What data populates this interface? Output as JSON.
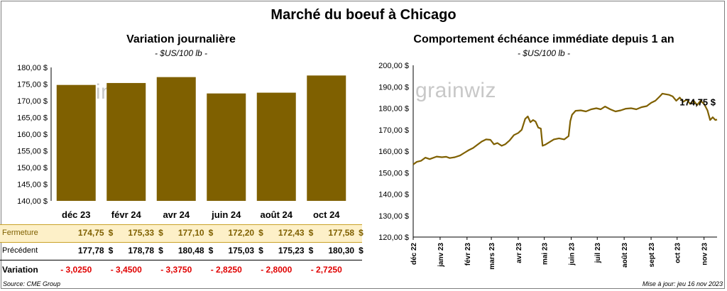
{
  "title": "Marché du boeuf à Chicago",
  "left": {
    "title": "Variation journalière",
    "subtitle": "- $US/100 lb -",
    "watermark": "grainwiz"
  },
  "right": {
    "title": "Comportement échéance immédiate depuis 1 an",
    "subtitle": "- $US/100 lb -",
    "watermark": "grainwiz",
    "last_label": "174,75 $"
  },
  "table": {
    "row_labels": [
      "Fermeture",
      "Précédent",
      "Variation"
    ],
    "currency": "$",
    "fermeture": [
      "174,75",
      "175,33",
      "177,10",
      "172,20",
      "172,43",
      "177,58"
    ],
    "precedent": [
      "177,78",
      "178,78",
      "180,48",
      "175,03",
      "175,23",
      "180,30"
    ],
    "variation": [
      "- 3,0250",
      "- 3,4500",
      "- 3,3750",
      "- 2,8250",
      "- 2,8000",
      "- 2,7250"
    ]
  },
  "footer": {
    "source": "Source: CME Group",
    "updated": "Mise à jour: jeu 16 nov 2023"
  },
  "colors": {
    "bar": "#7f6000",
    "line": "#7f6000",
    "negative": "#e00000",
    "close_bg": "#fdf0c8"
  },
  "chart_data": [
    {
      "type": "bar",
      "categories": [
        "déc 23",
        "févr 24",
        "avr 24",
        "juin 24",
        "août 24",
        "oct 24"
      ],
      "values": [
        174.75,
        175.33,
        177.1,
        172.2,
        172.43,
        177.58
      ],
      "ylim": [
        140,
        180
      ],
      "yticks": [
        140,
        145,
        150,
        155,
        160,
        165,
        170,
        175,
        180
      ],
      "ytick_labels": [
        "140,00 $",
        "145,00 $",
        "150,00 $",
        "155,00 $",
        "160,00 $",
        "165,00 $",
        "170,00 $",
        "175,00 $",
        "180,00 $"
      ],
      "grid": false
    },
    {
      "type": "line",
      "xlim": [
        "2022-12-01",
        "2023-11-16"
      ],
      "ylim": [
        120,
        200
      ],
      "yticks": [
        120,
        130,
        140,
        150,
        160,
        170,
        180,
        190,
        200
      ],
      "ytick_labels": [
        "120,00 $",
        "130,00 $",
        "140,00 $",
        "150,00 $",
        "160,00 $",
        "170,00 $",
        "180,00 $",
        "190,00 $",
        "200,00 $"
      ],
      "xticks": [
        "2022-12-01",
        "2023-01-01",
        "2023-02-01",
        "2023-03-01",
        "2023-04-01",
        "2023-05-01",
        "2023-06-01",
        "2023-07-01",
        "2023-08-01",
        "2023-09-01",
        "2023-10-01",
        "2023-11-01"
      ],
      "xtick_labels": [
        "déc 22",
        "janv 23",
        "févr 23",
        "mars 23",
        "avr 23",
        "mai 23",
        "juin 23",
        "juil 23",
        "août 23",
        "sept 23",
        "oct 23",
        "nov 23"
      ],
      "grid": false,
      "series": [
        {
          "x": [
            "2022-12-01",
            "2022-12-05",
            "2022-12-10",
            "2022-12-15",
            "2022-12-20",
            "2022-12-28",
            "2023-01-03",
            "2023-01-08",
            "2023-01-12",
            "2023-01-18",
            "2023-01-24",
            "2023-01-30",
            "2023-02-03",
            "2023-02-08",
            "2023-02-13",
            "2023-02-18",
            "2023-02-23",
            "2023-02-28",
            "2023-03-04",
            "2023-03-08",
            "2023-03-13",
            "2023-03-17",
            "2023-03-22",
            "2023-03-27",
            "2023-04-01",
            "2023-04-05",
            "2023-04-09",
            "2023-04-12",
            "2023-04-15",
            "2023-04-18",
            "2023-04-21",
            "2023-04-24",
            "2023-04-27",
            "2023-04-29",
            "2023-05-02",
            "2023-05-06",
            "2023-05-12",
            "2023-05-18",
            "2023-05-24",
            "2023-05-29",
            "2023-05-31",
            "2023-06-02",
            "2023-06-06",
            "2023-06-12",
            "2023-06-18",
            "2023-06-24",
            "2023-06-30",
            "2023-07-05",
            "2023-07-10",
            "2023-07-16",
            "2023-07-22",
            "2023-07-28",
            "2023-08-03",
            "2023-08-09",
            "2023-08-15",
            "2023-08-21",
            "2023-08-27",
            "2023-09-01",
            "2023-09-06",
            "2023-09-11",
            "2023-09-14",
            "2023-09-18",
            "2023-09-22",
            "2023-09-26",
            "2023-09-30",
            "2023-10-04",
            "2023-10-08",
            "2023-10-12",
            "2023-10-16",
            "2023-10-20",
            "2023-10-24",
            "2023-10-28",
            "2023-11-01",
            "2023-11-05",
            "2023-11-08",
            "2023-11-11",
            "2023-11-14",
            "2023-11-16"
          ],
          "y": [
            153.8,
            155.0,
            155.5,
            157.0,
            156.3,
            157.5,
            157.2,
            157.4,
            156.8,
            157.2,
            158.0,
            159.5,
            160.5,
            161.5,
            163.0,
            164.5,
            165.5,
            165.3,
            163.2,
            163.8,
            162.5,
            163.2,
            165.0,
            167.5,
            168.5,
            170.0,
            175.0,
            176.2,
            173.5,
            174.5,
            173.8,
            171.0,
            170.5,
            162.5,
            163.0,
            164.0,
            165.5,
            166.0,
            165.5,
            167.0,
            174.0,
            177.0,
            178.8,
            179.0,
            178.5,
            179.5,
            180.0,
            179.5,
            180.8,
            179.5,
            178.5,
            179.0,
            179.8,
            180.0,
            179.5,
            180.5,
            181.0,
            182.5,
            183.5,
            185.5,
            186.8,
            186.5,
            186.2,
            185.5,
            183.5,
            185.0,
            183.0,
            184.0,
            182.0,
            183.5,
            181.5,
            183.5,
            182.0,
            179.0,
            174.5,
            175.8,
            174.5,
            174.75
          ]
        }
      ]
    }
  ]
}
